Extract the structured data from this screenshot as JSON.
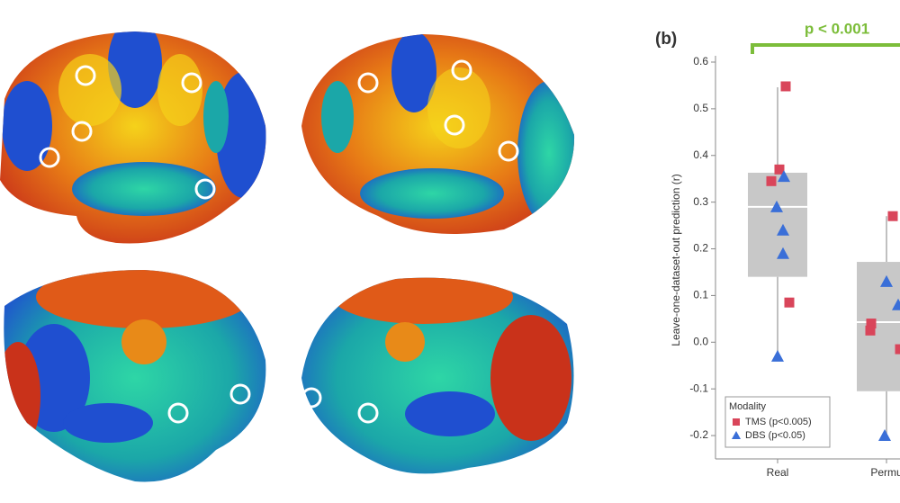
{
  "chart_data": {
    "type": "box",
    "title": "(b)",
    "annotation": "p < 0.001",
    "y_label": "Leave-one-dataset-out prediction (r)",
    "categories": [
      "Real",
      "Permu"
    ],
    "ylim": [
      -0.25,
      0.6
    ],
    "yticks": [
      0.6,
      0.5,
      0.4,
      0.3,
      0.2,
      0.1,
      {
        "value": 0,
        "label": "0.0"
      },
      -0.1,
      -0.2
    ],
    "box_color": "#c8c8c8",
    "boxes": [
      {
        "whisker_low": -0.02,
        "q1": 0.14,
        "median": 0.29,
        "q3": 0.363,
        "whisker_high": 0.546
      },
      {
        "whisker_low": -0.2,
        "q1": -0.105,
        "median": 0.043,
        "q3": 0.172,
        "whisker_high": 0.27
      }
    ],
    "legend_title": "Modality",
    "legend_position": "lower left",
    "series": [
      {
        "name": "TMS (p<0.005)",
        "color": "#d9455a",
        "marker": "square",
        "values": [
          [
            0.548,
            0.37,
            0.345,
            0.085
          ],
          [
            0.27,
            0.04,
            0.025,
            -0.015
          ]
        ]
      },
      {
        "name": "DBS (p<0.05)",
        "color": "#3a6fd8",
        "marker": "triangle",
        "values": [
          [
            0.355,
            0.29,
            0.24,
            0.19,
            -0.03
          ],
          [
            0.13,
            0.08,
            -0.2
          ]
        ]
      }
    ]
  }
}
